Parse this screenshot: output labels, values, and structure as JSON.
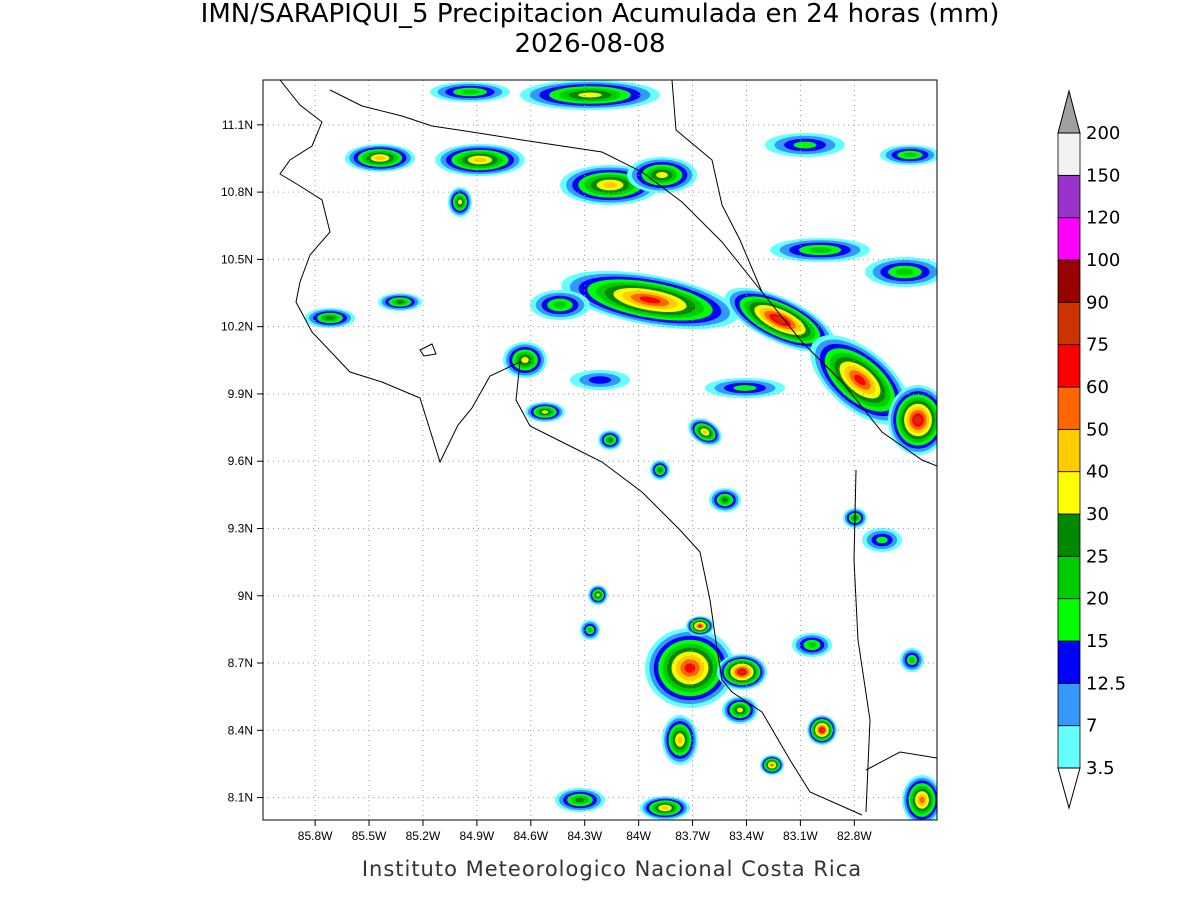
{
  "chart_data": {
    "type": "map",
    "title": "IMN/SARAPIQUI_5 Precipitacion Acumulada en 24 horas (mm)",
    "subtitle": "2026-08-08",
    "footer": "Instituto Meteorologico Nacional Costa Rica",
    "xlim": [
      -86.09,
      -82.34
    ],
    "ylim": [
      8.0,
      11.3
    ],
    "xticks": [
      {
        "value": -85.8,
        "label": "85.8W"
      },
      {
        "value": -85.5,
        "label": "85.5W"
      },
      {
        "value": -85.2,
        "label": "85.2W"
      },
      {
        "value": -84.9,
        "label": "84.9W"
      },
      {
        "value": -84.6,
        "label": "84.6W"
      },
      {
        "value": -84.3,
        "label": "84.3W"
      },
      {
        "value": -84.0,
        "label": "84W"
      },
      {
        "value": -83.7,
        "label": "83.7W"
      },
      {
        "value": -83.4,
        "label": "83.4W"
      },
      {
        "value": -83.1,
        "label": "83.1W"
      },
      {
        "value": -82.8,
        "label": "82.8W"
      }
    ],
    "yticks": [
      {
        "value": 8.1,
        "label": "8.1N"
      },
      {
        "value": 8.4,
        "label": "8.4N"
      },
      {
        "value": 8.7,
        "label": "8.7N"
      },
      {
        "value": 9.0,
        "label": "9N"
      },
      {
        "value": 9.3,
        "label": "9.3N"
      },
      {
        "value": 9.6,
        "label": "9.6N"
      },
      {
        "value": 9.9,
        "label": "9.9N"
      },
      {
        "value": 10.2,
        "label": "10.2N"
      },
      {
        "value": 10.5,
        "label": "10.5N"
      },
      {
        "value": 10.8,
        "label": "10.8N"
      },
      {
        "value": 11.1,
        "label": "11.1N"
      }
    ],
    "grid": true,
    "colorbar": {
      "levels": [
        3.5,
        7,
        12.5,
        15,
        20,
        25,
        30,
        40,
        50,
        60,
        75,
        90,
        100,
        120,
        150,
        200
      ],
      "colors": [
        "#66ffff",
        "#3399ff",
        "#0000ff",
        "#00ff00",
        "#00cc00",
        "#008800",
        "#ffff00",
        "#ffcc00",
        "#ff6600",
        "#ff0000",
        "#cc3300",
        "#990000",
        "#ff00ff",
        "#9933cc",
        "#f2f2f2"
      ],
      "below_color": "#ffffff",
      "above_color": "#a0a0a0"
    }
  }
}
